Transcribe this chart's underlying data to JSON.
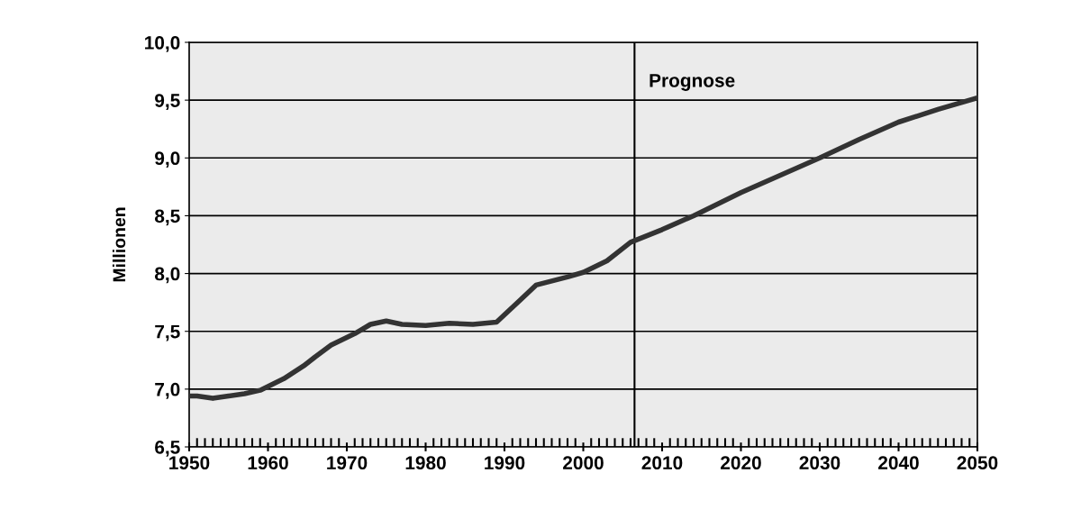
{
  "chart_data": {
    "type": "line",
    "ylabel": "Millionen",
    "x": [
      1950,
      1951,
      1953,
      1955,
      1957,
      1959,
      1962,
      1964.5,
      1966,
      1968,
      1971,
      1973,
      1975,
      1977,
      1980,
      1983,
      1986,
      1989,
      1992,
      1994,
      1998,
      2000,
      2003,
      2006,
      2010,
      2014,
      2020,
      2025,
      2030,
      2035,
      2040,
      2045,
      2050
    ],
    "series": [
      {
        "color": "#333333",
        "values": [
          6.94,
          6.94,
          6.92,
          6.94,
          6.96,
          6.99,
          7.09,
          7.2,
          7.28,
          7.38,
          7.48,
          7.56,
          7.59,
          7.56,
          7.55,
          7.57,
          7.56,
          7.58,
          7.77,
          7.9,
          7.97,
          8.01,
          8.11,
          8.27,
          8.38,
          8.5,
          8.7,
          8.85,
          9.0,
          9.16,
          9.31,
          9.42,
          9.52
        ]
      }
    ],
    "xlim": [
      1950,
      2050
    ],
    "xticks": [
      1950,
      1960,
      1970,
      1980,
      1990,
      2000,
      2010,
      2020,
      2030,
      2040,
      2050
    ],
    "ylim": [
      6.5,
      10.0
    ],
    "yticks": [
      {
        "value": 6.5,
        "label": "6,5"
      },
      {
        "value": 7.0,
        "label": "7,0"
      },
      {
        "value": 7.5,
        "label": "7,5"
      },
      {
        "value": 8.0,
        "label": "8,0"
      },
      {
        "value": 8.5,
        "label": "8,5"
      },
      {
        "value": 9.0,
        "label": "9,0"
      },
      {
        "value": 9.5,
        "label": "9,5"
      },
      {
        "value": 10.0,
        "label": "10,0"
      }
    ],
    "grid": "y",
    "legend": false,
    "marker": "none",
    "line_style": "solid",
    "ref_lines": [
      {
        "axis": "x",
        "value": 2006.5,
        "label": "Prognose",
        "color": "#000000"
      }
    ]
  }
}
